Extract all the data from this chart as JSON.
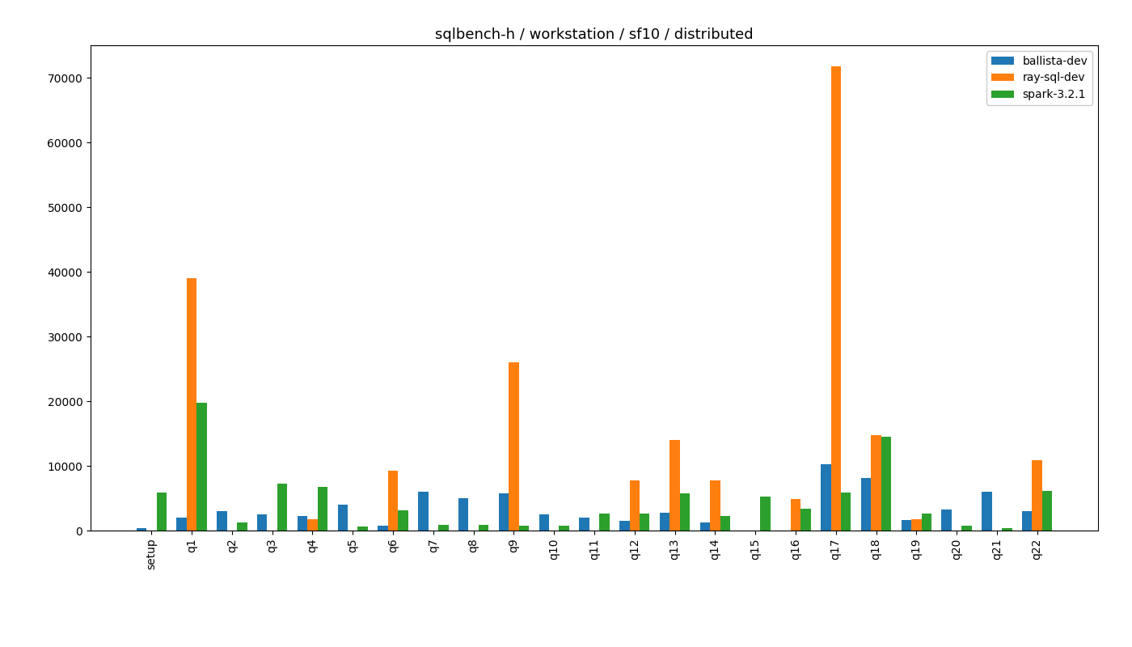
{
  "title": "sqlbench-h / workstation / sf10 / distributed",
  "categories": [
    "setup",
    "q1",
    "q2",
    "q3",
    "q4",
    "q5",
    "q6",
    "q7",
    "q8",
    "q9",
    "q10",
    "q11",
    "q12",
    "q13",
    "q14",
    "q15",
    "q16",
    "q17",
    "q18",
    "q19",
    "q20",
    "q21",
    "q22"
  ],
  "series": {
    "ballista-dev": [
      350,
      2000,
      3000,
      2500,
      2200,
      4000,
      800,
      6000,
      5000,
      5800,
      2500,
      2000,
      1500,
      2700,
      1300,
      0,
      0,
      10200,
      8100,
      1600,
      3200,
      6000,
      3000
    ],
    "ray-sql-dev": [
      0,
      39000,
      0,
      0,
      1800,
      0,
      9300,
      0,
      0,
      26000,
      0,
      0,
      7800,
      14000,
      7800,
      0,
      4900,
      71700,
      14700,
      1800,
      0,
      0,
      10900
    ],
    "spark-3.2.1": [
      5900,
      19700,
      1300,
      7300,
      6700,
      600,
      3100,
      900,
      900,
      800,
      800,
      2600,
      2600,
      5800,
      2200,
      5300,
      3400,
      5900,
      14500,
      2600,
      700,
      400,
      6100
    ]
  },
  "colors": {
    "ballista-dev": "#1f77b4",
    "ray-sql-dev": "#ff7f0e",
    "spark-3.2.1": "#2ca02c"
  },
  "ylim": [
    0,
    75000
  ],
  "yticks": [
    0,
    10000,
    20000,
    30000,
    40000,
    50000,
    60000,
    70000
  ],
  "bar_width": 0.25,
  "figsize": [
    14.0,
    8.0
  ],
  "dpi": 100,
  "legend_loc": "upper right",
  "background_color": "#ffffff",
  "title_fontsize": 13,
  "tick_fontsize": 10
}
